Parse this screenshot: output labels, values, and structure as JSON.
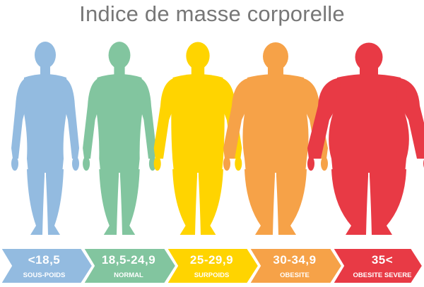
{
  "title": "Indice de masse corporelle",
  "categories": [
    {
      "range": "<18,5",
      "label": "SOUS-POIDS",
      "color": "#93bbe0",
      "build": "thin"
    },
    {
      "range": "18,5-24,9",
      "label": "NORMAL",
      "color": "#82c59f",
      "build": "normal"
    },
    {
      "range": "25-29,9",
      "label": "SURPOIDS",
      "color": "#ffd400",
      "build": "overweight"
    },
    {
      "range": "30-34,9",
      "label": "OBESITE",
      "color": "#f6a248",
      "build": "obese"
    },
    {
      "range": "35<",
      "label": "OBESITE SEVERE",
      "color": "#e83a45",
      "build": "severe"
    }
  ]
}
